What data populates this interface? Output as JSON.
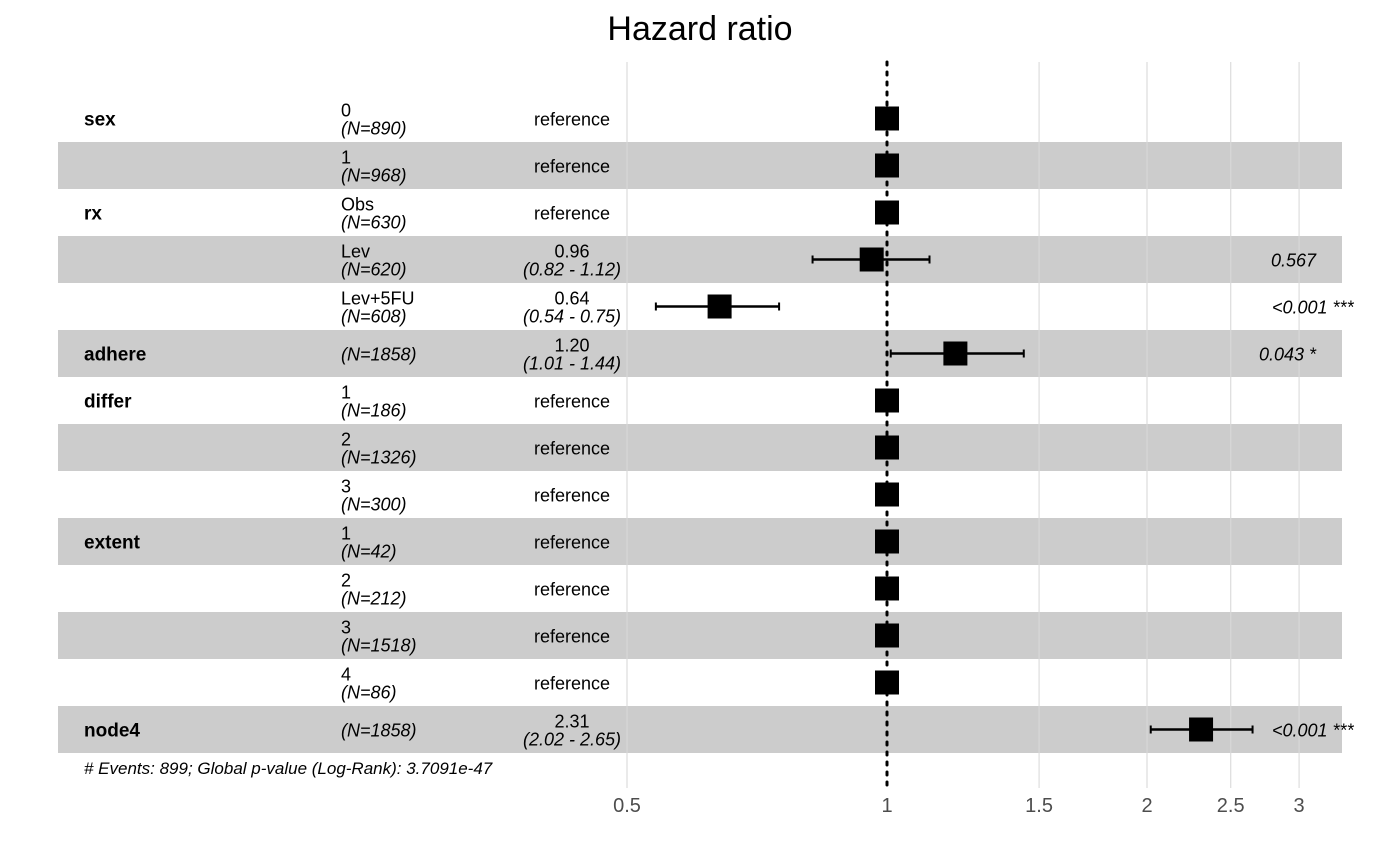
{
  "chart_data": {
    "type": "forest",
    "title": "Hazard ratio",
    "x_scale": "log",
    "xlim": [
      0.5,
      3.2
    ],
    "x_ticks": [
      0.5,
      1,
      1.5,
      2,
      2.5,
      3
    ],
    "x_tick_labels": [
      "0.5",
      "1",
      "1.5",
      "2",
      "2.5",
      "3"
    ],
    "reference_line": 1,
    "grid": "vertical",
    "row_shading": "alternating gray",
    "rows": [
      {
        "variable": "sex",
        "level": "0",
        "n": "(N=890)",
        "hr": 1,
        "lower": null,
        "upper": null,
        "est_label": "reference",
        "ci_label": "",
        "p_label": ""
      },
      {
        "variable": "",
        "level": "1",
        "n": "(N=968)",
        "hr": 1,
        "lower": null,
        "upper": null,
        "est_label": "reference",
        "ci_label": "",
        "p_label": ""
      },
      {
        "variable": "rx",
        "level": "Obs",
        "n": "(N=630)",
        "hr": 1,
        "lower": null,
        "upper": null,
        "est_label": "reference",
        "ci_label": "",
        "p_label": ""
      },
      {
        "variable": "",
        "level": "Lev",
        "n": "(N=620)",
        "hr": 0.96,
        "lower": 0.82,
        "upper": 1.12,
        "est_label": "0.96",
        "ci_label": "(0.82 - 1.12)",
        "p_label": "0.567"
      },
      {
        "variable": "",
        "level": "Lev+5FU",
        "n": "(N=608)",
        "hr": 0.64,
        "lower": 0.54,
        "upper": 0.75,
        "est_label": "0.64",
        "ci_label": "(0.54 - 0.75)",
        "p_label": "<0.001 ***"
      },
      {
        "variable": "adhere",
        "level": "",
        "n": "(N=1858)",
        "hr": 1.2,
        "lower": 1.01,
        "upper": 1.44,
        "est_label": "1.20",
        "ci_label": "(1.01 - 1.44)",
        "p_label": "0.043 *"
      },
      {
        "variable": "differ",
        "level": "1",
        "n": "(N=186)",
        "hr": 1,
        "lower": null,
        "upper": null,
        "est_label": "reference",
        "ci_label": "",
        "p_label": ""
      },
      {
        "variable": "",
        "level": "2",
        "n": "(N=1326)",
        "hr": 1,
        "lower": null,
        "upper": null,
        "est_label": "reference",
        "ci_label": "",
        "p_label": ""
      },
      {
        "variable": "",
        "level": "3",
        "n": "(N=300)",
        "hr": 1,
        "lower": null,
        "upper": null,
        "est_label": "reference",
        "ci_label": "",
        "p_label": ""
      },
      {
        "variable": "extent",
        "level": "1",
        "n": "(N=42)",
        "hr": 1,
        "lower": null,
        "upper": null,
        "est_label": "reference",
        "ci_label": "",
        "p_label": ""
      },
      {
        "variable": "",
        "level": "2",
        "n": "(N=212)",
        "hr": 1,
        "lower": null,
        "upper": null,
        "est_label": "reference",
        "ci_label": "",
        "p_label": ""
      },
      {
        "variable": "",
        "level": "3",
        "n": "(N=1518)",
        "hr": 1,
        "lower": null,
        "upper": null,
        "est_label": "reference",
        "ci_label": "",
        "p_label": ""
      },
      {
        "variable": "",
        "level": "4",
        "n": "(N=86)",
        "hr": 1,
        "lower": null,
        "upper": null,
        "est_label": "reference",
        "ci_label": "",
        "p_label": ""
      },
      {
        "variable": "node4",
        "level": "",
        "n": "(N=1858)",
        "hr": 2.31,
        "lower": 2.02,
        "upper": 2.65,
        "est_label": "2.31",
        "ci_label": "(2.02 - 2.65)",
        "p_label": "<0.001 ***"
      }
    ],
    "footer": "# Events: 899; Global p-value (Log-Rank): 3.7091e-47"
  },
  "colors": {
    "band": "#cccccc",
    "grid": "#d9d9d9",
    "marker": "#000000",
    "tick_text": "#4d4d4d"
  }
}
